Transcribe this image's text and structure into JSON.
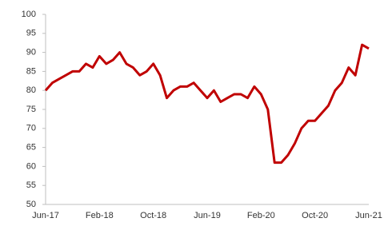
{
  "chart_data": {
    "type": "line",
    "categories": [
      "Jun-17",
      null,
      null,
      null,
      null,
      null,
      null,
      null,
      "Feb-18",
      null,
      null,
      null,
      null,
      null,
      null,
      null,
      "Oct-18",
      null,
      null,
      null,
      null,
      null,
      null,
      null,
      "Jun-19",
      null,
      null,
      null,
      null,
      null,
      null,
      null,
      "Feb-20",
      null,
      null,
      null,
      null,
      null,
      null,
      null,
      "Oct-20",
      null,
      null,
      null,
      null,
      null,
      null,
      null,
      "Jun-21"
    ],
    "series": [
      {
        "color": "#c00000",
        "values": [
          80,
          82,
          83,
          84,
          85,
          85,
          87,
          86,
          89,
          87,
          88,
          90,
          87,
          86,
          84,
          85,
          87,
          84,
          78,
          80,
          81,
          81,
          82,
          80,
          78,
          80,
          77,
          78,
          79,
          79,
          78,
          81,
          79,
          75,
          61,
          61,
          63,
          66,
          70,
          72,
          72,
          74,
          76,
          80,
          82,
          86,
          84,
          92,
          91
        ]
      }
    ],
    "ylim": [
      50,
      100
    ],
    "yticks": [
      50,
      55,
      60,
      65,
      70,
      75,
      80,
      85,
      90,
      95,
      100
    ],
    "grid": false
  }
}
